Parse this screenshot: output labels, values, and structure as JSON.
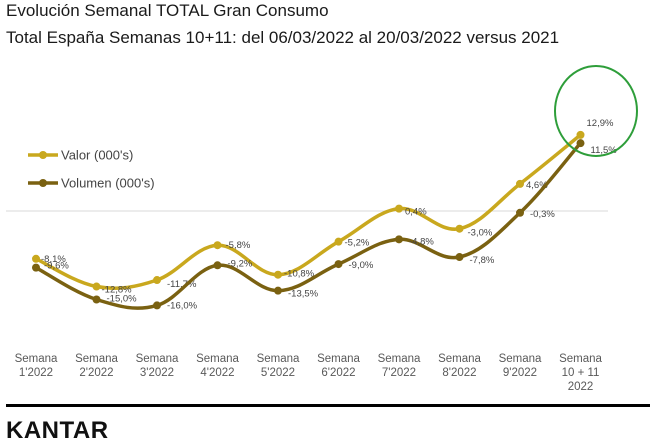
{
  "header": {
    "title": "Evolución Semanal TOTAL Gran Consumo",
    "subtitle": "Total España Semanas 10+11: del 06/03/2022 al 20/03/2022 versus 2021"
  },
  "footer": {
    "brand": "KANTAR"
  },
  "chart_data": {
    "type": "line",
    "categories": [
      [
        "Semana",
        "1'2022"
      ],
      [
        "Semana",
        "2'2022"
      ],
      [
        "Semana",
        "3'2022"
      ],
      [
        "Semana",
        "4'2022"
      ],
      [
        "Semana",
        "5'2022"
      ],
      [
        "Semana",
        "6'2022"
      ],
      [
        "Semana",
        "7'2022"
      ],
      [
        "Semana",
        "8'2022"
      ],
      [
        "Semana",
        "9'2022"
      ],
      [
        "Semana",
        "10 + 11",
        "2022"
      ]
    ],
    "ylim": [
      -20,
      20
    ],
    "legend_position": "top-left",
    "series": [
      {
        "name": "Valor (000's)",
        "color": "#c9a81e",
        "values": [
          -8.1,
          -12.8,
          -11.7,
          -5.8,
          -10.8,
          -5.2,
          0.4,
          -3.0,
          4.6,
          12.9
        ],
        "labels": [
          "-8,1%",
          "-12,8%",
          "-11,7%",
          "-5,8%",
          "-10,8%",
          "-5,2%",
          "0,4%",
          "-3,0%",
          "4,6%",
          "12,9%"
        ]
      },
      {
        "name": "Volumen (000's)",
        "color": "#7a6111",
        "values": [
          -9.6,
          -15.0,
          -16.0,
          -9.2,
          -13.5,
          -9.0,
          -4.8,
          -7.8,
          -0.3,
          11.5
        ],
        "labels": [
          "-9,6%",
          "-15,0%",
          "-16,0%",
          "-9,2%",
          "-13,5%",
          "-9,0%",
          "-4,8%",
          "-7,8%",
          "-0,3%",
          "11,5%"
        ]
      }
    ],
    "highlight": {
      "shape": "circle",
      "color": "#2e9e3a",
      "category_index": 9
    }
  }
}
